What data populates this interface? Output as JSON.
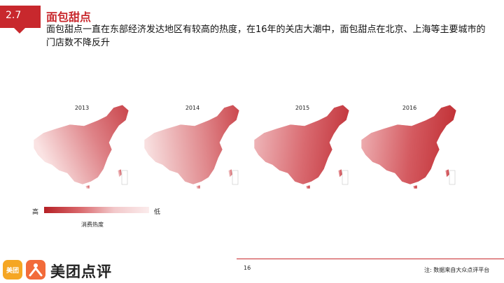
{
  "header": {
    "section_number": "2.7",
    "title": "面包甜点",
    "description": "面包甜点一直在东部经济发达地区有较高的热度，在16年的关店大潮中，面包甜点在北京、上海等主要城市的门店数不降反升"
  },
  "maps": [
    {
      "year": "2013"
    },
    {
      "year": "2014"
    },
    {
      "year": "2015"
    },
    {
      "year": "2016"
    }
  ],
  "legend": {
    "high_label": "高",
    "low_label": "低",
    "title": "消费热度",
    "color_high": "#b52025",
    "color_low": "#fbecec"
  },
  "footer": {
    "page_number": "16",
    "note": "注: 数据来自大众点评平台",
    "logo_icon_text": "美团",
    "logo_text": "美团点评",
    "accent_color": "#c8282d"
  }
}
